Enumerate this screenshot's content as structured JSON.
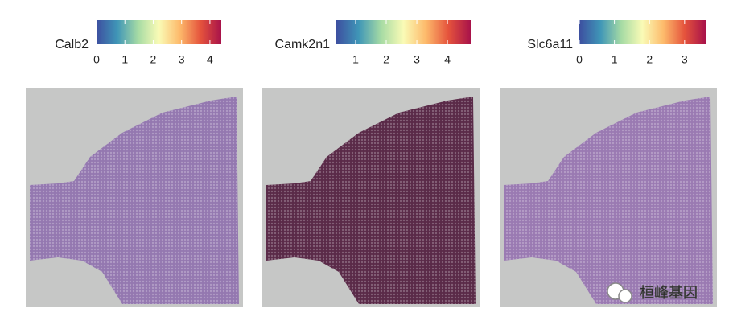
{
  "chart_data": [
    {
      "type": "spatial",
      "title": "Calb2",
      "clim": [
        0,
        4.4
      ],
      "cticks": [
        0,
        1,
        2,
        3,
        4
      ],
      "tissue_color": "#9478b0"
    },
    {
      "type": "spatial",
      "title": "Camk2n1",
      "clim": [
        0.37,
        4.76
      ],
      "cticks": [
        1,
        2,
        3,
        4
      ],
      "tissue_color": "#5a2a48"
    },
    {
      "type": "spatial",
      "title": "Slc6a11",
      "clim": [
        0,
        3.6
      ],
      "cticks": [
        0,
        1,
        2,
        3
      ],
      "tissue_color": "#9a7ab2"
    }
  ],
  "colormap": [
    "#3d4fa0",
    "#3f96b7",
    "#a6dba4",
    "#fafbb6",
    "#fdba6b",
    "#e5533c",
    "#a8124a"
  ],
  "watermark": "桓峰基因"
}
